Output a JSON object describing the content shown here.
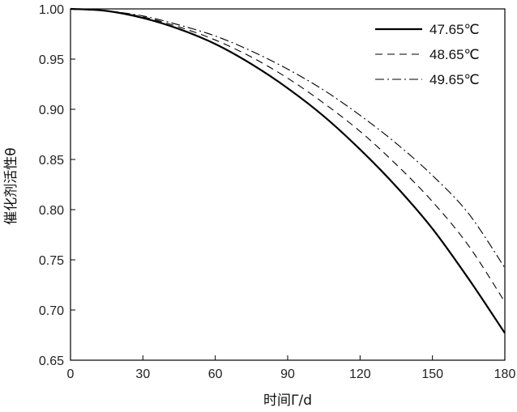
{
  "chart_data": {
    "type": "line",
    "xlabel": "时间Γ/d",
    "ylabel": "催化剂活性θ",
    "xlim": [
      0,
      180
    ],
    "ylim": [
      0.65,
      1.0
    ],
    "xticks": [
      "0",
      "30",
      "60",
      "90",
      "120",
      "150",
      "180"
    ],
    "yticks": [
      "0.65",
      "0.70",
      "0.75",
      "0.80",
      "0.85",
      "0.90",
      "0.95",
      "1.00"
    ],
    "legend_position": "top-right",
    "grid": false,
    "x": [
      0,
      15,
      30,
      45,
      60,
      75,
      90,
      105,
      120,
      135,
      150,
      165,
      180
    ],
    "series": [
      {
        "name": "47.65℃",
        "style": "solid",
        "values": [
          1.0,
          0.998,
          0.991,
          0.98,
          0.965,
          0.945,
          0.921,
          0.893,
          0.86,
          0.823,
          0.781,
          0.731,
          0.677
        ]
      },
      {
        "name": "48.65℃",
        "style": "dashed",
        "values": [
          1.0,
          0.998,
          0.992,
          0.982,
          0.969,
          0.952,
          0.931,
          0.906,
          0.878,
          0.845,
          0.808,
          0.764,
          0.708
        ]
      },
      {
        "name": "49.65℃",
        "style": "dashdot",
        "values": [
          1.0,
          0.998,
          0.993,
          0.984,
          0.973,
          0.958,
          0.94,
          0.919,
          0.894,
          0.866,
          0.834,
          0.796,
          0.742
        ]
      }
    ]
  }
}
